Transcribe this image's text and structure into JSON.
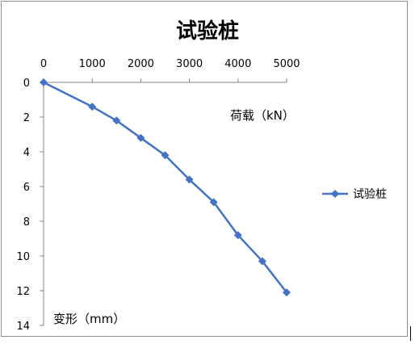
{
  "chart_data": {
    "type": "line",
    "title": "试验桩",
    "xlabel": "荷载（kN）",
    "ylabel": "变形（mm）",
    "x_axis_position": "top",
    "y_axis_inverted": true,
    "xlim": [
      0,
      5000
    ],
    "ylim": [
      0,
      14
    ],
    "x_ticks": [
      "0",
      "1000",
      "2000",
      "3000",
      "4000",
      "5000"
    ],
    "y_ticks": [
      "0",
      "2",
      "4",
      "6",
      "8",
      "10",
      "12",
      "14"
    ],
    "grid": false,
    "legend_position": "right",
    "series": [
      {
        "name": "试验桩",
        "color": "#4472C4",
        "marker": "diamond",
        "x": [
          0,
          1000,
          1500,
          2000,
          2500,
          3000,
          3500,
          4000,
          4500,
          5000
        ],
        "y": [
          0,
          1.4,
          2.2,
          3.2,
          4.2,
          5.6,
          6.9,
          8.8,
          10.3,
          12.1
        ]
      }
    ]
  }
}
